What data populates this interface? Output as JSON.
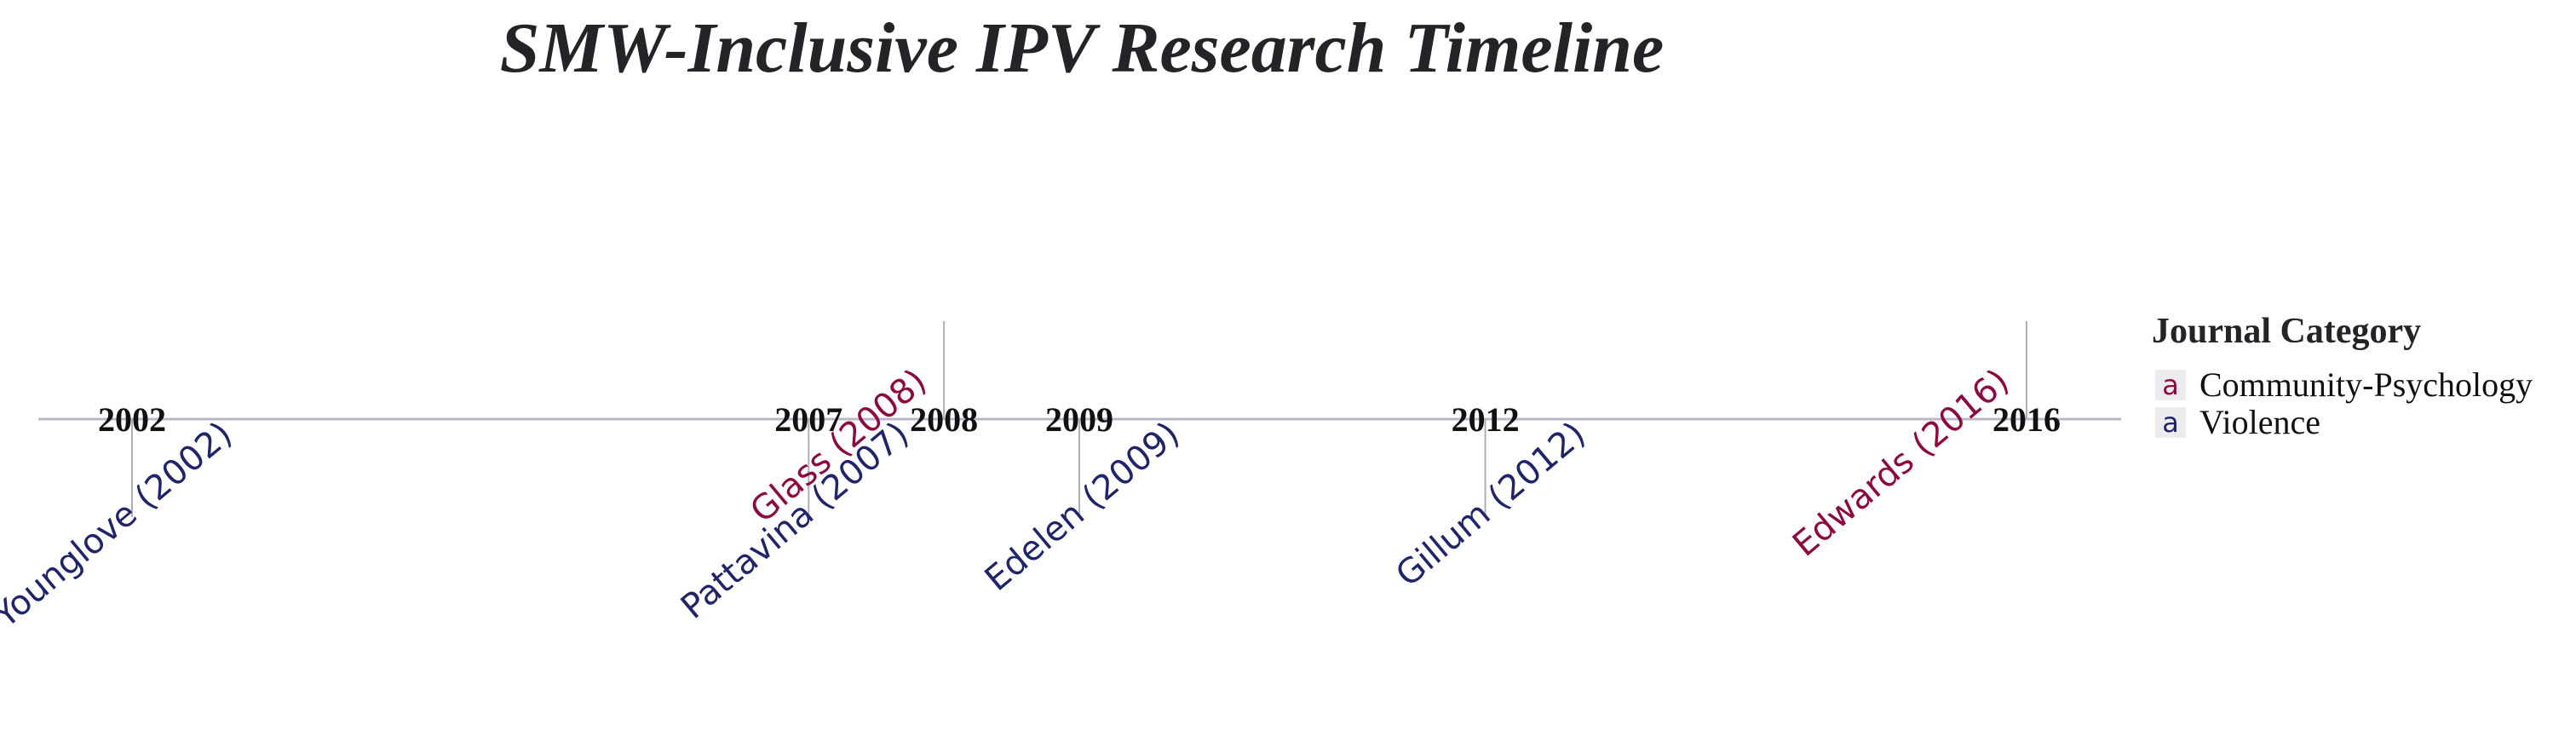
{
  "chart_data": {
    "type": "timeline",
    "title": "SMW-Inclusive IPV Research Timeline",
    "xlim": [
      2002,
      2016
    ],
    "ticks": [
      "2002",
      "2007",
      "2008",
      "2009",
      "2012",
      "2016"
    ],
    "events": [
      {
        "year": 2002,
        "label": "Younglove (2002)",
        "category": "Violence",
        "side": "below"
      },
      {
        "year": 2007,
        "label": "Pattavina (2007)",
        "category": "Violence",
        "side": "below"
      },
      {
        "year": 2008,
        "label": "Glass (2008)",
        "category": "Community-Psychology",
        "side": "above"
      },
      {
        "year": 2009,
        "label": "Edelen (2009)",
        "category": "Violence",
        "side": "below"
      },
      {
        "year": 2012,
        "label": "Gillum (2012)",
        "category": "Violence",
        "side": "below"
      },
      {
        "year": 2016,
        "label": "Edwards (2016)",
        "category": "Community-Psychology",
        "side": "above"
      }
    ],
    "legend": {
      "title": "Journal Category",
      "placement": "right",
      "key_glyph": "a",
      "entries": [
        {
          "name": "Community-Psychology",
          "color": "#8b0a41"
        },
        {
          "name": "Violence",
          "color": "#1f2568"
        }
      ]
    },
    "axis_color": "#b8b8c8",
    "stem_color": "#b0b0b0"
  }
}
